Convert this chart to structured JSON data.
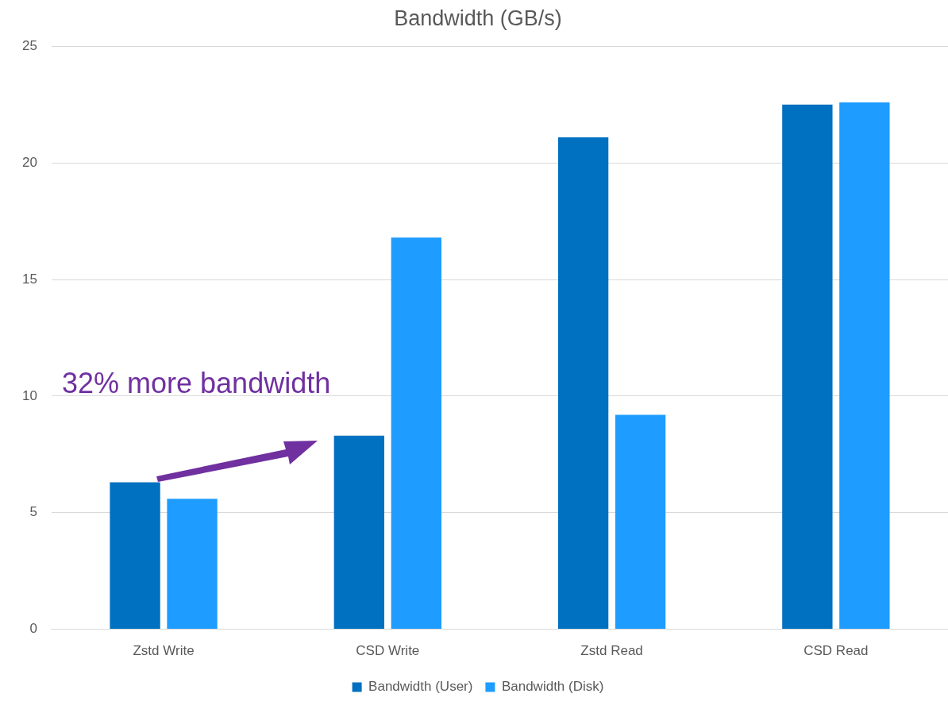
{
  "chart_data": {
    "type": "bar",
    "title": "Bandwidth (GB/s)",
    "categories": [
      "Zstd Write",
      "CSD Write",
      "Zstd Read",
      "CSD Read"
    ],
    "series": [
      {
        "name": "Bandwidth (User)",
        "color": "#0070c0",
        "values": [
          6.3,
          8.3,
          21.1,
          22.5
        ]
      },
      {
        "name": "Bandwidth (Disk)",
        "color": "#1e9cff",
        "values": [
          5.6,
          16.8,
          9.2,
          22.6
        ]
      }
    ],
    "ylim": [
      0,
      25
    ],
    "yticks": [
      0,
      5,
      10,
      15,
      20,
      25
    ],
    "grid": "y",
    "legend": "bottom",
    "annotations": [
      "32% more bandwidth"
    ]
  }
}
